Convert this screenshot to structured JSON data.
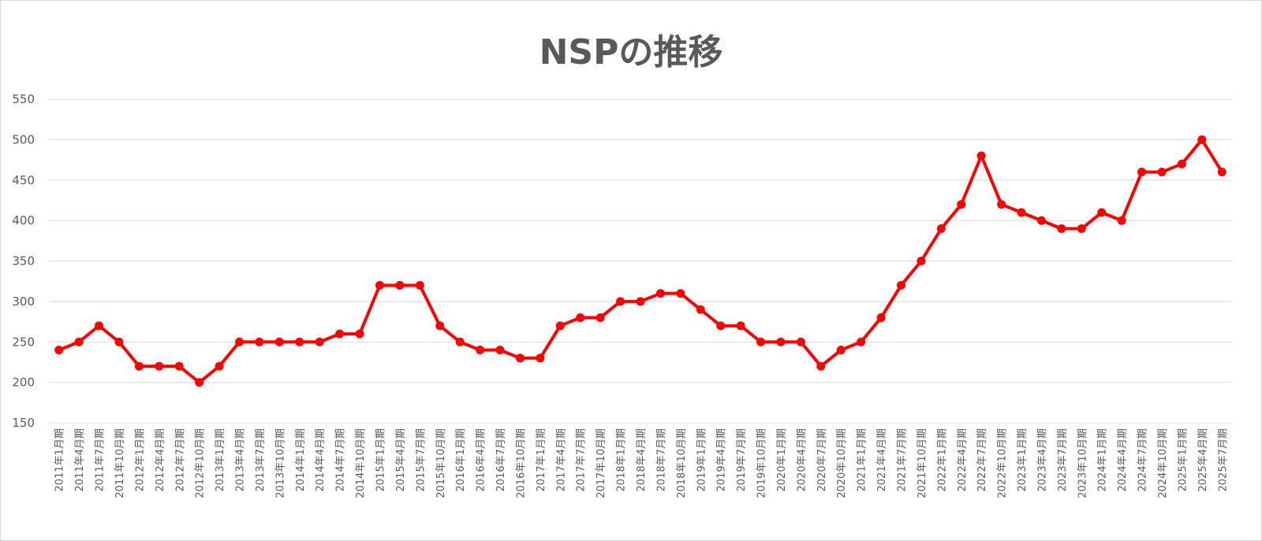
{
  "chart_data": {
    "type": "line",
    "title": "NSPの推移",
    "xlabel": "",
    "ylabel": "",
    "ylim": [
      150,
      550
    ],
    "yticks": [
      150,
      200,
      250,
      300,
      350,
      400,
      450,
      500,
      550
    ],
    "grid": true,
    "legend": "none",
    "line_color": "#ff0000",
    "categories": [
      "2011年1月期",
      "2011年4月期",
      "2011年7月期",
      "2011年10月期",
      "2012年1月期",
      "2012年4月期",
      "2012年7月期",
      "2012年10月期",
      "2013年1月期",
      "2013年4月期",
      "2013年7月期",
      "2013年10月期",
      "2014年1月期",
      "2014年4月期",
      "2014年7月期",
      "2014年10月期",
      "2015年1月期",
      "2015年4月期",
      "2015年7月期",
      "2015年10月期",
      "2016年1月期",
      "2016年4月期",
      "2016年7月期",
      "2016年10月期",
      "2017年1月期",
      "2017年4月期",
      "2017年7月期",
      "2017年10月期",
      "2018年1月期",
      "2018年4月期",
      "2018年7月期",
      "2018年10月期",
      "2019年1月期",
      "2019年4月期",
      "2019年7月期",
      "2019年10月期",
      "2020年1月期",
      "2020年4月期",
      "2020年7月期",
      "2020年10月期",
      "2021年1月期",
      "2021年4月期",
      "2021年7月期",
      "2021年10月期",
      "2022年1月期",
      "2022年4月期",
      "2022年7月期",
      "2022年10月期",
      "2023年1月期",
      "2023年4月期",
      "2023年7月期",
      "2023年10月期",
      "2024年1月期",
      "2024年4月期",
      "2024年7月期",
      "2024年10月期",
      "2025年1月期",
      "2025年4月期",
      "2025年7月期"
    ],
    "values": [
      240,
      250,
      270,
      250,
      220,
      220,
      220,
      200,
      220,
      250,
      250,
      250,
      250,
      250,
      260,
      260,
      320,
      320,
      320,
      270,
      250,
      240,
      240,
      230,
      230,
      270,
      280,
      280,
      300,
      300,
      310,
      310,
      290,
      270,
      270,
      250,
      250,
      250,
      220,
      240,
      250,
      280,
      320,
      350,
      390,
      420,
      480,
      420,
      410,
      400,
      390,
      390,
      410,
      400,
      460,
      460,
      470,
      500,
      460
    ]
  }
}
